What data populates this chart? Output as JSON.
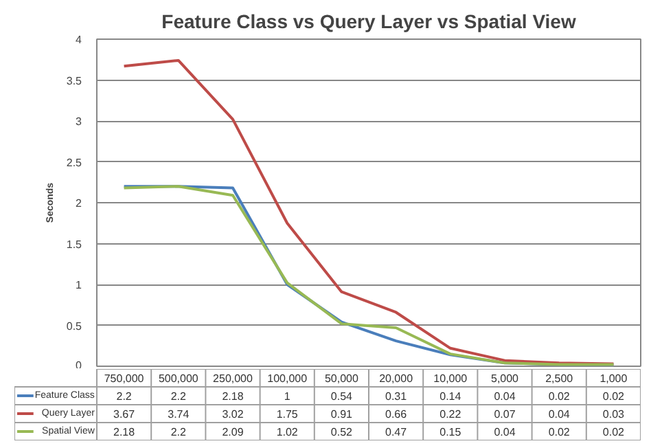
{
  "chart_data": {
    "type": "line",
    "title": "Feature Class vs Query Layer vs Spatial View",
    "ylabel": "Seconds",
    "categories": [
      "750,000",
      "500,000",
      "250,000",
      "100,000",
      "50,000",
      "20,000",
      "10,000",
      "5,000",
      "2,500",
      "1,000"
    ],
    "series": [
      {
        "name": "Feature Class",
        "color": "#4a7ebb",
        "values": [
          2.2,
          2.2,
          2.18,
          1,
          0.54,
          0.31,
          0.14,
          0.04,
          0.02,
          0.02
        ]
      },
      {
        "name": "Query Layer",
        "color": "#be4b48",
        "values": [
          3.67,
          3.74,
          3.02,
          1.75,
          0.91,
          0.66,
          0.22,
          0.07,
          0.04,
          0.03
        ]
      },
      {
        "name": "Spatial View",
        "color": "#98b954",
        "values": [
          2.18,
          2.2,
          2.09,
          1.02,
          0.52,
          0.47,
          0.15,
          0.04,
          0.02,
          0.02
        ]
      }
    ],
    "ylim": [
      0,
      4
    ],
    "yticks": [
      0,
      0.5,
      1,
      1.5,
      2,
      2.5,
      3,
      3.5,
      4
    ],
    "grid": "y",
    "legend": "bottom",
    "data_labels": true
  }
}
